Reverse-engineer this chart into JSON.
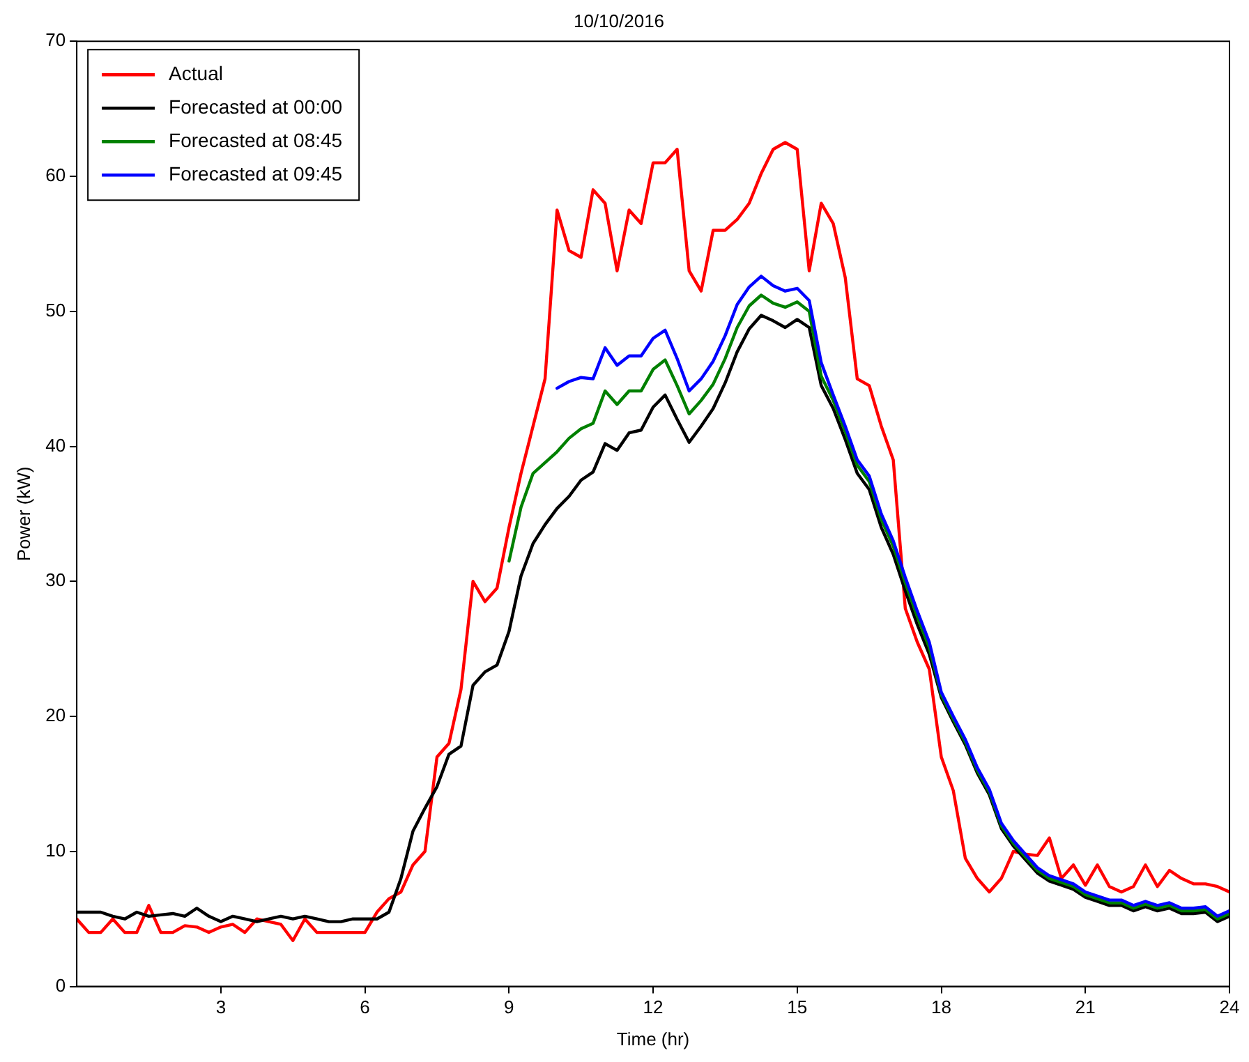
{
  "chart_data": {
    "type": "line",
    "title": "10/10/2016",
    "xlabel": "Time (hr)",
    "ylabel": "Power (kW)",
    "x": [
      0,
      0.25,
      0.5,
      0.75,
      1,
      1.25,
      1.5,
      1.75,
      2,
      2.25,
      2.5,
      2.75,
      3,
      3.25,
      3.5,
      3.75,
      4,
      4.25,
      4.5,
      4.75,
      5,
      5.25,
      5.5,
      5.75,
      6,
      6.25,
      6.5,
      6.75,
      7,
      7.25,
      7.5,
      7.75,
      8,
      8.25,
      8.5,
      8.75,
      9,
      9.25,
      9.5,
      9.75,
      10,
      10.25,
      10.5,
      10.75,
      11,
      11.25,
      11.5,
      11.75,
      12,
      12.25,
      12.5,
      12.75,
      13,
      13.25,
      13.5,
      13.75,
      14,
      14.25,
      14.5,
      14.75,
      15,
      15.25,
      15.5,
      15.75,
      16,
      16.25,
      16.5,
      16.75,
      17,
      17.25,
      17.5,
      17.75,
      18,
      18.25,
      18.5,
      18.75,
      19,
      19.25,
      19.5,
      19.75,
      20,
      20.25,
      20.5,
      20.75,
      21,
      21.25,
      21.5,
      21.75,
      22,
      22.25,
      22.5,
      22.75,
      23,
      23.25,
      23.5,
      23.75,
      24
    ],
    "series": [
      {
        "name": "Actual",
        "color": "#ff0000",
        "values": [
          5,
          4,
          4,
          5,
          4,
          4,
          6,
          4,
          4,
          4.5,
          4.4,
          4,
          4.4,
          4.6,
          4,
          5,
          4.8,
          4.6,
          3.4,
          5,
          4,
          4,
          4,
          4,
          4,
          5.5,
          6.5,
          7,
          9,
          10,
          17,
          18,
          22,
          30,
          28.5,
          29.5,
          34,
          38,
          41.5,
          45,
          57.5,
          54.5,
          54,
          59,
          58,
          53,
          57.5,
          56.5,
          61,
          61,
          62,
          53,
          51.5,
          56,
          56,
          56.8,
          58,
          60.2,
          62,
          62.5,
          62,
          53,
          58,
          56.5,
          52.5,
          45,
          44.5,
          41.5,
          39,
          28,
          25.5,
          23.5,
          17,
          14.5,
          9.5,
          8,
          7,
          8,
          10,
          9.8,
          9.7,
          11,
          8,
          9,
          7.5,
          9,
          7.4,
          7,
          7.4,
          9,
          7.4,
          8.6,
          8,
          7.6,
          7.6,
          7.4,
          7
        ]
      },
      {
        "name": "Forecasted at 00:00",
        "color": "#000000",
        "values": [
          5.5,
          5.5,
          5.5,
          5.2,
          5,
          5.5,
          5.2,
          5.3,
          5.4,
          5.2,
          5.8,
          5.2,
          4.8,
          5.2,
          5,
          4.8,
          5,
          5.2,
          5,
          5.2,
          5,
          4.8,
          4.8,
          5,
          5,
          5,
          5.5,
          8,
          11.5,
          13.2,
          14.8,
          17.2,
          17.8,
          22.3,
          23.3,
          23.8,
          26.3,
          30.4,
          32.8,
          34.2,
          35.4,
          36.3,
          37.5,
          38.1,
          40.2,
          39.7,
          41,
          41.2,
          42.9,
          43.8,
          42,
          40.3,
          41.5,
          42.8,
          44.7,
          47,
          48.7,
          49.7,
          49.3,
          48.8,
          49.4,
          48.8,
          44.5,
          42.8,
          40.5,
          38,
          36.8,
          34,
          32,
          29.3,
          26.8,
          24.6,
          21.4,
          19.6,
          17.9,
          15.8,
          14.2,
          11.7,
          10.4,
          9.4,
          8.4,
          7.8,
          7.5,
          7.2,
          6.6,
          6.3,
          6,
          6,
          5.6,
          5.9,
          5.6,
          5.8,
          5.4,
          5.4,
          5.5,
          4.8,
          5.2
        ]
      },
      {
        "name": "Forecasted at 08:45",
        "color": "#008000",
        "values": [
          null,
          null,
          null,
          null,
          null,
          null,
          null,
          null,
          null,
          null,
          null,
          null,
          null,
          null,
          null,
          null,
          null,
          null,
          null,
          null,
          null,
          null,
          null,
          null,
          null,
          null,
          null,
          null,
          null,
          null,
          null,
          null,
          null,
          null,
          null,
          null,
          31.5,
          35.5,
          38,
          38.8,
          39.6,
          40.6,
          41.3,
          41.7,
          44.1,
          43.1,
          44.1,
          44.1,
          45.7,
          46.4,
          44.5,
          42.4,
          43.4,
          44.6,
          46.5,
          48.8,
          50.4,
          51.2,
          50.6,
          50.3,
          50.7,
          50,
          45.2,
          43.4,
          41.1,
          38.6,
          37.4,
          34.6,
          32.6,
          29.9,
          27.4,
          25.1,
          21.6,
          19.8,
          18.1,
          16,
          14.4,
          11.9,
          10.6,
          9.6,
          8.6,
          8,
          7.7,
          7.4,
          6.8,
          6.5,
          6.2,
          6.2,
          5.8,
          6.1,
          5.8,
          6,
          5.6,
          5.6,
          5.7,
          5,
          5.4
        ]
      },
      {
        "name": "Forecasted at 09:45",
        "color": "#0000ff",
        "values": [
          null,
          null,
          null,
          null,
          null,
          null,
          null,
          null,
          null,
          null,
          null,
          null,
          null,
          null,
          null,
          null,
          null,
          null,
          null,
          null,
          null,
          null,
          null,
          null,
          null,
          null,
          null,
          null,
          null,
          null,
          null,
          null,
          null,
          null,
          null,
          null,
          null,
          null,
          null,
          null,
          44.3,
          44.8,
          45.1,
          45,
          47.3,
          46,
          46.7,
          46.7,
          48,
          48.6,
          46.5,
          44.1,
          45,
          46.3,
          48.2,
          50.5,
          51.8,
          52.6,
          51.9,
          51.5,
          51.7,
          50.8,
          46.2,
          43.8,
          41.5,
          39,
          37.8,
          35,
          33,
          30.3,
          27.8,
          25.5,
          21.8,
          20,
          18.3,
          16.2,
          14.6,
          12.1,
          10.8,
          9.8,
          8.8,
          8.2,
          7.9,
          7.6,
          7,
          6.7,
          6.4,
          6.4,
          6,
          6.3,
          6,
          6.2,
          5.8,
          5.8,
          5.9,
          5.2,
          5.6
        ]
      }
    ],
    "xlim": [
      0,
      24
    ],
    "xticks": [
      3,
      6,
      9,
      12,
      15,
      18,
      21,
      24
    ],
    "ylim": [
      0,
      70
    ],
    "yticks": [
      0,
      10,
      20,
      30,
      40,
      50,
      60,
      70
    ],
    "grid": false,
    "legend": "top left",
    "marker": "none",
    "line_style": "solid"
  }
}
